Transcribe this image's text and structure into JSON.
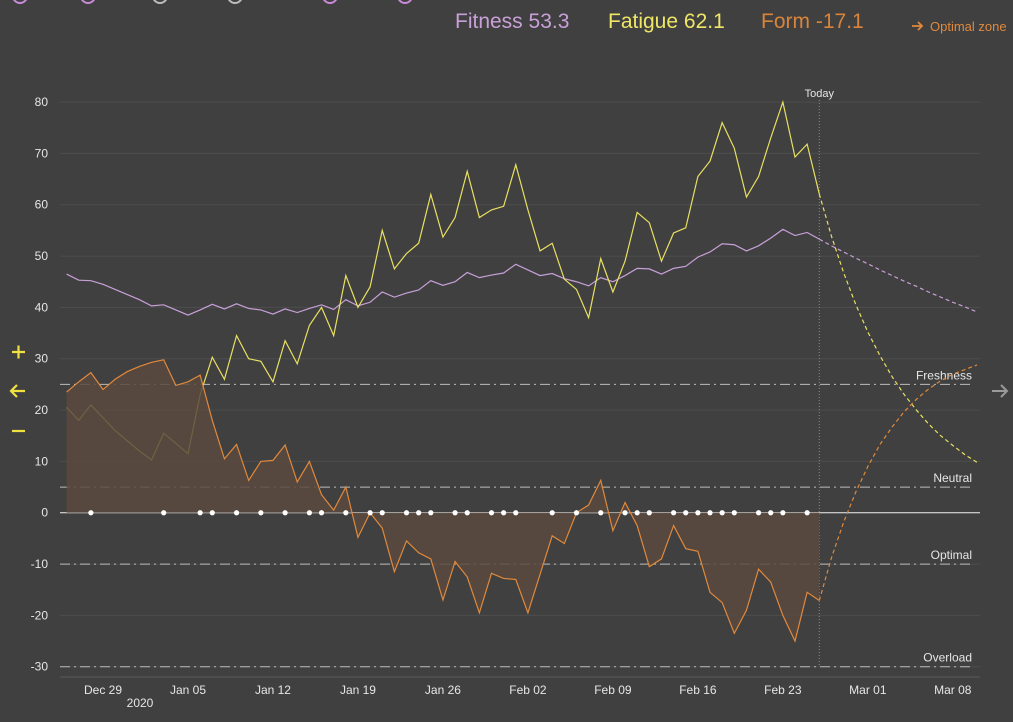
{
  "chart_data": {
    "type": "line",
    "categories": [
      null,
      null,
      null,
      "Dec 29",
      null,
      null,
      null,
      null,
      null,
      null,
      "Jan 05",
      null,
      null,
      null,
      null,
      null,
      null,
      "Jan 12",
      null,
      null,
      null,
      null,
      null,
      null,
      "Jan 19",
      null,
      null,
      null,
      null,
      null,
      null,
      "Jan 26",
      null,
      null,
      null,
      null,
      null,
      null,
      "Feb 02",
      null,
      null,
      null,
      null,
      null,
      null,
      "Feb 09",
      null,
      null,
      null,
      null,
      null,
      null,
      "Feb 16",
      null,
      null,
      null,
      null,
      null,
      null,
      "Feb 23",
      null,
      null,
      null,
      null,
      null,
      null,
      "Mar 01",
      null,
      null,
      null,
      null,
      null,
      null,
      "Mar 08",
      null,
      null
    ],
    "year_label": "2020",
    "series": [
      {
        "name": "Fitness",
        "current": 53.3,
        "color": "#c8a0d8",
        "values": [
          46.5,
          45.3,
          45.2,
          44.5,
          43.5,
          42.5,
          41.5,
          40.3,
          40.5,
          39.5,
          38.5,
          39.5,
          40.6,
          39.7,
          40.7,
          39.8,
          39.5,
          38.7,
          39.7,
          39,
          39.8,
          40.5,
          39.6,
          41.5,
          40.3,
          41,
          43,
          42,
          42.8,
          43.4,
          45.2,
          44.3,
          45,
          46.8,
          45.8,
          46.3,
          46.7,
          48.4,
          47.3,
          46.2,
          46.6,
          45.6,
          45,
          44.2,
          45.8,
          45,
          46.2,
          47.6,
          47.5,
          46.5,
          47.6,
          48,
          49.8,
          50.8,
          52.4,
          52.2,
          51,
          52,
          53.5,
          55.2,
          54,
          54.6,
          53.3,
          52,
          50.8,
          49.6,
          48.5,
          47.3,
          46.2,
          45.1,
          44.1,
          43,
          42,
          41,
          40.1,
          39.1
        ]
      },
      {
        "name": "Fatigue",
        "current": 62.1,
        "color": "#e8e060",
        "values": [
          20.5,
          18,
          21,
          18.5,
          16,
          14,
          12,
          10.3,
          15.5,
          13.5,
          11.5,
          23,
          30.3,
          26,
          34.5,
          30,
          29.5,
          25.5,
          33.5,
          29,
          36.5,
          40,
          34.5,
          46.2,
          40,
          44,
          55,
          47.5,
          50.5,
          52.5,
          62,
          53.7,
          57.5,
          66.5,
          57.5,
          59,
          59.7,
          67.8,
          59,
          51,
          52.5,
          45.5,
          43.5,
          38,
          49.5,
          43,
          49,
          58.5,
          56.5,
          49,
          54.5,
          55.5,
          65.5,
          68.5,
          76,
          71,
          61.5,
          65.5,
          73,
          80,
          69.3,
          71.8,
          62.1,
          53.9,
          46.8,
          40.6,
          35.2,
          30.6,
          26.5,
          23,
          20,
          17.3,
          15,
          13.1,
          11.3,
          9.8
        ]
      },
      {
        "name": "Form",
        "current": -17.1,
        "color": "#e0893c",
        "fill": true,
        "values": [
          23.5,
          25.5,
          27.3,
          24,
          26,
          27.5,
          28.5,
          29.3,
          29.8,
          24.8,
          25.5,
          26.8,
          18,
          10.5,
          13.3,
          6.3,
          10,
          10.2,
          13.2,
          6,
          10,
          3.5,
          0.5,
          5,
          -4.8,
          0,
          -3,
          -11.5,
          -5.5,
          -7.8,
          -9,
          -17,
          -9.5,
          -12.5,
          -19.5,
          -11.8,
          -12.8,
          -13,
          -19.5,
          -12,
          -4.5,
          -6,
          0,
          1.5,
          6.3,
          -3.5,
          2,
          -2.5,
          -10.5,
          -9,
          -2.5,
          -7,
          -7.5,
          -15.5,
          -17.5,
          -23.5,
          -19,
          -11,
          -13.5,
          -20,
          -25,
          -15.5,
          -17.1,
          -8.8,
          -1.9,
          4,
          9,
          13.3,
          16.7,
          19.7,
          22.1,
          24.1,
          25.7,
          27,
          27.9,
          28.8
        ]
      }
    ],
    "today": {
      "label": "Today",
      "x": 62
    },
    "activities": [
      2,
      8,
      11,
      12,
      14,
      16,
      18,
      20,
      21,
      23,
      25,
      26,
      28,
      29,
      30,
      32,
      33,
      35,
      36,
      37,
      40,
      42,
      44,
      46,
      47,
      48,
      50,
      51,
      52,
      53,
      54,
      55,
      57,
      58,
      59,
      61
    ],
    "zones": [
      {
        "label": "Freshness",
        "value": 25
      },
      {
        "label": "Neutral",
        "value": 5
      },
      {
        "label": "Optimal",
        "value": -10
      },
      {
        "label": "Overload",
        "value": -30
      }
    ],
    "zone_link": "Optimal zone",
    "ylim": [
      -32,
      88
    ],
    "yticks": [
      -30,
      -20,
      -10,
      0,
      10,
      20,
      30,
      40,
      50,
      60,
      70,
      80
    ],
    "grid": true
  }
}
